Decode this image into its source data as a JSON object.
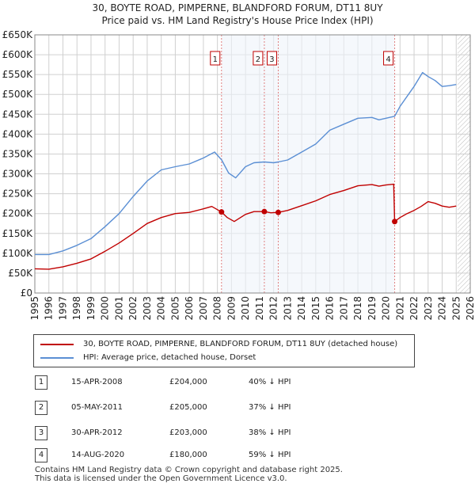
{
  "title_line1": "30, BOYTE ROAD, PIMPERNE, BLANDFORD FORUM, DT11 8UY",
  "title_line2": "Price paid vs. HM Land Registry's House Price Index (HPI)",
  "colors": {
    "price": "#c00000",
    "hpi": "#5b8fd4",
    "grid": "#d0d0d0",
    "shade": "#eef3fa"
  },
  "chart_data": {
    "type": "line",
    "xlim": [
      1995,
      2026
    ],
    "ylim": [
      0,
      650000
    ],
    "y_ticks": [
      0,
      50000,
      100000,
      150000,
      200000,
      250000,
      300000,
      350000,
      400000,
      450000,
      500000,
      550000,
      600000,
      650000
    ],
    "y_tick_labels": [
      "£0",
      "£50K",
      "£100K",
      "£150K",
      "£200K",
      "£250K",
      "£300K",
      "£350K",
      "£400K",
      "£450K",
      "£500K",
      "£550K",
      "£600K",
      "£650K"
    ],
    "x_ticks": [
      1995,
      1996,
      1997,
      1998,
      1999,
      2000,
      2001,
      2002,
      2003,
      2004,
      2005,
      2006,
      2007,
      2008,
      2009,
      2010,
      2011,
      2012,
      2013,
      2014,
      2015,
      2016,
      2017,
      2018,
      2019,
      2020,
      2021,
      2022,
      2023,
      2024,
      2025,
      2026
    ],
    "x_tick_labels": [
      "1995",
      "1996",
      "1997",
      "1998",
      "1999",
      "2000",
      "2001",
      "2002",
      "2003",
      "2004",
      "2005",
      "2006",
      "2007",
      "2008",
      "2009",
      "2010",
      "2011",
      "2012",
      "2013",
      "2014",
      "2015",
      "2016",
      "2017",
      "2018",
      "2019",
      "2020",
      "2021",
      "2022",
      "2023",
      "2024",
      "2025",
      "2026"
    ],
    "shaded_after": 2025.1,
    "series": [
      {
        "name": "30, BOYTE ROAD, PIMPERNE, BLANDFORD FORUM, DT11 8UY (detached house)",
        "x": [
          1995.0,
          1996.0,
          1997.0,
          1998.0,
          1999.0,
          2000.0,
          2001.0,
          2002.0,
          2003.0,
          2004.0,
          2005.0,
          2006.0,
          2007.0,
          2007.6,
          2008.29,
          2008.7,
          2009.2,
          2010.0,
          2010.6,
          2011.34,
          2011.8,
          2012.33,
          2013.0,
          2014.0,
          2015.0,
          2016.0,
          2017.0,
          2018.0,
          2019.0,
          2019.5,
          2020.0,
          2020.55,
          2020.62,
          2021.0,
          2021.5,
          2022.0,
          2022.5,
          2023.0,
          2023.5,
          2024.0,
          2024.5,
          2025.0
        ],
        "values": [
          61000,
          60000,
          66000,
          75000,
          86000,
          105000,
          126000,
          150000,
          175000,
          190000,
          200000,
          203000,
          212000,
          218000,
          204000,
          190000,
          180000,
          198000,
          205000,
          205000,
          202000,
          203000,
          208000,
          220000,
          232000,
          248000,
          258000,
          270000,
          273000,
          269000,
          272000,
          274000,
          180000,
          190000,
          200000,
          208000,
          218000,
          230000,
          226000,
          219000,
          216000,
          219000
        ]
      },
      {
        "name": "HPI: Average price, detached house, Dorset",
        "x": [
          1995.0,
          1996.0,
          1997.0,
          1998.0,
          1999.0,
          2000.0,
          2001.0,
          2002.0,
          2003.0,
          2004.0,
          2005.0,
          2006.0,
          2007.0,
          2007.8,
          2008.3,
          2008.8,
          2009.3,
          2010.0,
          2010.6,
          2011.34,
          2012.0,
          2012.33,
          2013.0,
          2014.0,
          2015.0,
          2016.0,
          2017.0,
          2018.0,
          2019.0,
          2019.5,
          2020.0,
          2020.62,
          2021.0,
          2021.5,
          2022.0,
          2022.6,
          2023.0,
          2023.5,
          2024.0,
          2024.5,
          2025.0
        ],
        "values": [
          97000,
          97000,
          106000,
          120000,
          137000,
          167000,
          200000,
          243000,
          282000,
          310000,
          318000,
          325000,
          340000,
          355000,
          335000,
          302000,
          290000,
          318000,
          328000,
          330000,
          328000,
          330000,
          335000,
          355000,
          375000,
          410000,
          425000,
          440000,
          442000,
          436000,
          440000,
          445000,
          470000,
          495000,
          520000,
          555000,
          545000,
          535000,
          520000,
          522000,
          525000
        ]
      }
    ],
    "markers": [
      {
        "label": "1",
        "x": 2008.29,
        "y": 204000
      },
      {
        "label": "2",
        "x": 2011.34,
        "y": 205000
      },
      {
        "label": "3",
        "x": 2012.33,
        "y": 203000
      },
      {
        "label": "4",
        "x": 2020.62,
        "y": 180000
      }
    ]
  },
  "legend": {
    "price_label": "30, BOYTE ROAD, PIMPERNE, BLANDFORD FORUM, DT11 8UY (detached house)",
    "hpi_label": "HPI: Average price, detached house, Dorset"
  },
  "table": [
    {
      "num": "1",
      "date": "15-APR-2008",
      "price": "£204,000",
      "pct": "40% ↓ HPI"
    },
    {
      "num": "2",
      "date": "05-MAY-2011",
      "price": "£205,000",
      "pct": "37% ↓ HPI"
    },
    {
      "num": "3",
      "date": "30-APR-2012",
      "price": "£203,000",
      "pct": "38% ↓ HPI"
    },
    {
      "num": "4",
      "date": "14-AUG-2020",
      "price": "£180,000",
      "pct": "59% ↓ HPI"
    }
  ],
  "footer_line1": "Contains HM Land Registry data © Crown copyright and database right 2025.",
  "footer_line2": "This data is licensed under the Open Government Licence v3.0."
}
